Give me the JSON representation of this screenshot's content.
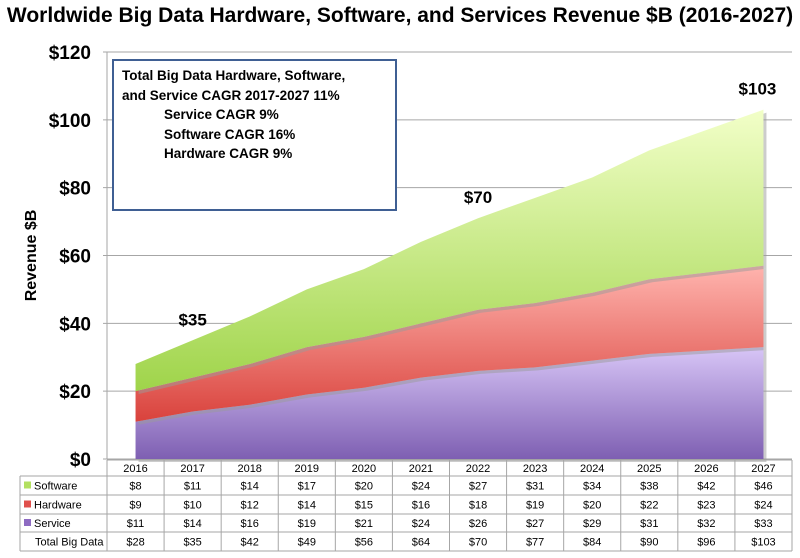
{
  "chart_data": {
    "type": "area",
    "stacked": true,
    "title": "Worldwide Big Data Hardware, Software, and Services Revenue $B (2016-2027)",
    "ylabel": "Revenue $B",
    "xlabel": "",
    "ylim": [
      0,
      120
    ],
    "yticks": [
      "$0",
      "$20",
      "$40",
      "$60",
      "$80",
      "$100",
      "$120"
    ],
    "ytick_values": [
      0,
      20,
      40,
      60,
      80,
      100,
      120
    ],
    "grid": true,
    "categories": [
      "2016",
      "2017",
      "2018",
      "2019",
      "2020",
      "2021",
      "2022",
      "2023",
      "2024",
      "2025",
      "2026",
      "2027"
    ],
    "series": [
      {
        "name": "Service",
        "color": "#8e6bc2",
        "values": [
          11,
          14,
          16,
          19,
          21,
          24,
          26,
          27,
          29,
          31,
          32,
          33
        ],
        "labels": [
          "$11",
          "$14",
          "$16",
          "$19",
          "$21",
          "$24",
          "$26",
          "$27",
          "$29",
          "$31",
          "$32",
          "$33"
        ]
      },
      {
        "name": "Hardware",
        "color": "#e0504c",
        "values": [
          9,
          10,
          12,
          14,
          15,
          16,
          18,
          19,
          20,
          22,
          23,
          24
        ],
        "labels": [
          "$9",
          "$10",
          "$12",
          "$14",
          "$15",
          "$16",
          "$18",
          "$19",
          "$20",
          "$22",
          "$23",
          "$24"
        ]
      },
      {
        "name": "Software",
        "color": "#b3e060",
        "values": [
          8,
          11,
          14,
          17,
          20,
          24,
          27,
          31,
          34,
          38,
          42,
          46
        ],
        "labels": [
          "$8",
          "$11",
          "$14",
          "$17",
          "$20",
          "$24",
          "$27",
          "$31",
          "$34",
          "$38",
          "$42",
          "$46"
        ]
      }
    ],
    "table_row_order": [
      "Software",
      "Hardware",
      "Service"
    ],
    "total": {
      "name": "Total Big Data",
      "labels": [
        "$28",
        "$35",
        "$42",
        "$49",
        "$56",
        "$64",
        "$70",
        "$77",
        "$84",
        "$90",
        "$96",
        "$103"
      ]
    },
    "annotations": [
      {
        "category": "2017",
        "text": "$35"
      },
      {
        "category": "2022",
        "text": "$70"
      },
      {
        "category": "2027",
        "text": "$103"
      }
    ],
    "note": {
      "line1": "Total Big Data Hardware, Software,",
      "line2": "and Service CAGR 2017-2027 11%",
      "line3": "Service CAGR 9%",
      "line4": "Software CAGR 16%",
      "line5": "Hardware CAGR 9%"
    }
  }
}
